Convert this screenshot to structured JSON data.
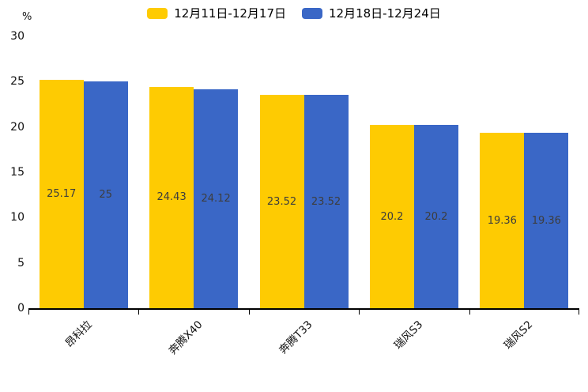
{
  "chart_data": {
    "type": "bar",
    "title": "",
    "unit_label": "%",
    "categories": [
      "昂科拉",
      "奔腾X40",
      "奔腾T33",
      "瑞风S3",
      "瑞风S2"
    ],
    "series": [
      {
        "name": "12月11日-12月17日",
        "color": "#FECB02",
        "values": [
          25.17,
          24.43,
          23.52,
          20.2,
          19.36
        ]
      },
      {
        "name": "12月18日-12月24日",
        "color": "#3A67C6",
        "values": [
          25,
          24.12,
          23.52,
          20.2,
          19.36
        ]
      }
    ],
    "y_ticks": [
      0,
      5,
      10,
      15,
      20,
      25,
      30
    ],
    "ylim": [
      0,
      30
    ],
    "xlabel": "",
    "ylabel": "%",
    "legend_position": "top-center",
    "grid": false,
    "value_label_color": "#3d3d3d",
    "axis_color": "#000000"
  }
}
